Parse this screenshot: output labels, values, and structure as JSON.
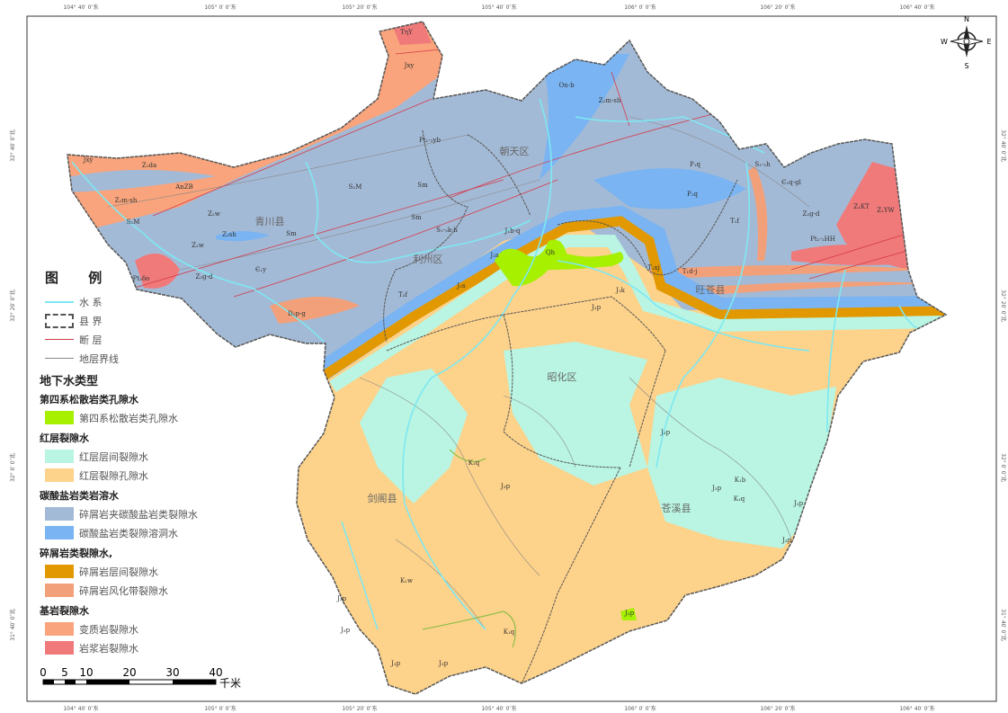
{
  "coords": {
    "top": [
      "104° 40′ 0″东",
      "105° 0′ 0″东",
      "105° 20′ 0″东",
      "105° 40′ 0″东",
      "106° 0′ 0″东",
      "106° 20′ 0″东",
      "106° 40′ 0″东"
    ],
    "bottom": [
      "104° 40′ 0″东",
      "105° 0′ 0″东",
      "105° 20′ 0″东",
      "105° 40′ 0″东",
      "106° 0′ 0″东",
      "106° 20′ 0″东",
      "106° 40′ 0″东"
    ],
    "left": [
      "32° 40′ 0″北",
      "32° 20′ 0″北",
      "32° 0′ 0″北",
      "31° 40′ 0″北"
    ],
    "right": [
      "32° 40′ 0″北",
      "32° 20′ 0″北",
      "32° 0′ 0″北",
      "31° 40′ 0″北"
    ]
  },
  "compass": {
    "n": "N",
    "s": "S",
    "e": "E",
    "w": "W"
  },
  "places": [
    "青川县",
    "朝天区",
    "利州区",
    "旺苍县",
    "昭化区",
    "剑阁县",
    "苍溪县"
  ],
  "codes": [
    "TηY",
    "Jxy",
    "Pt₁-₂yb",
    "Jxy",
    "Z₁da",
    "AnZB",
    "Z₂m-sh",
    "S₂M",
    "S₂M",
    "Z₂w",
    "Z₂sh",
    "Sm",
    "Z₂w",
    "Pt₃δo",
    "Z₂g-d",
    "Є₁y",
    "D₂p-g",
    "Sm",
    "Sm",
    "S₁-₂k-h",
    "J₁b-q",
    "T₃f",
    "J₂s",
    "Qh",
    "J₂s",
    "On-b",
    "Z₂m-sh",
    "P₁q",
    "P₁q",
    "S₁-₂h",
    "Є₁q-gl",
    "T₁f",
    "T₁xj",
    "T₁d-j",
    "Z₂g-d",
    "Z₁KT",
    "Z₁YW",
    "Pt₁-₂HH",
    "J₁k",
    "J₃p",
    "J₃p",
    "J₃p",
    "K₁q",
    "J₃p",
    "K₁b",
    "K₁q",
    "J₃p",
    "J₃p",
    "K₁w",
    "J₃p",
    "J₃p",
    "J₃p",
    "J₃p",
    "K₁q",
    "J₃p"
  ],
  "legend": {
    "title": "图 例",
    "items": [
      {
        "label": "水 系",
        "color": "#7ee8f2",
        "kind": "line"
      },
      {
        "label": "县 界",
        "color": "#555555",
        "kind": "box"
      },
      {
        "label": "断 层",
        "color": "#d43a4a",
        "kind": "line"
      },
      {
        "label": "地层界线",
        "color": "#888888",
        "kind": "line"
      }
    ],
    "groundwater_title": "地下水类型",
    "groups": [
      {
        "title": "第四系松散岩类孔隙水",
        "items": [
          {
            "label": "第四系松散岩类孔隙水",
            "color": "#a6f000"
          }
        ]
      },
      {
        "title": "红层裂隙水",
        "items": [
          {
            "label": "红层层间裂隙水",
            "color": "#b9f5e2"
          },
          {
            "label": "红层裂隙孔隙水",
            "color": "#fdd28a"
          }
        ]
      },
      {
        "title": "碳酸盐岩类岩溶水",
        "items": [
          {
            "label": "碎屑岩夹碳酸盐岩类裂隙水",
            "color": "#a3bad6"
          },
          {
            "label": "碳酸盐岩类裂隙溶洞水",
            "color": "#7ab4f2"
          }
        ]
      },
      {
        "title": "碎屑岩类裂隙水,",
        "items": [
          {
            "label": "碎屑岩层间裂隙水",
            "color": "#e29800"
          },
          {
            "label": "碎屑岩风化带裂隙水",
            "color": "#f2a07a"
          }
        ]
      },
      {
        "title": "基岩裂隙水",
        "items": [
          {
            "label": "变质岩裂隙水",
            "color": "#f9a47c"
          },
          {
            "label": "岩浆岩裂隙水",
            "color": "#f07a7a"
          }
        ]
      }
    ]
  },
  "scale_bar": {
    "ticks": [
      "0",
      "5",
      "10",
      "20",
      "30",
      "40"
    ],
    "unit": "千米"
  }
}
